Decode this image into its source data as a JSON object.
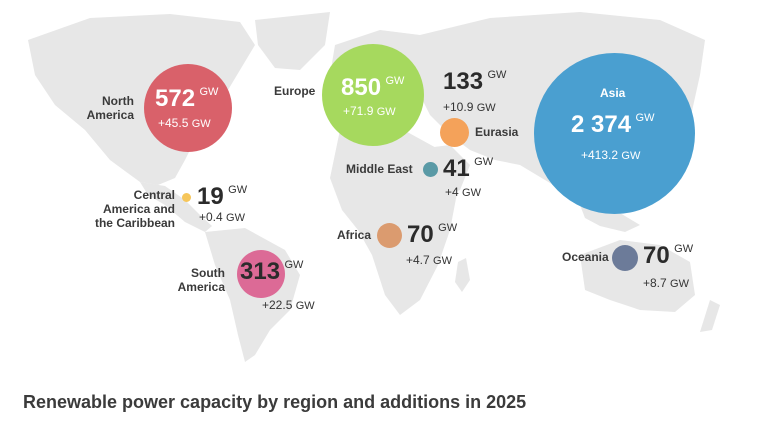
{
  "title": "Renewable power capacity by region and additions in 2025",
  "regions": {
    "north_america": {
      "name_l1": "North",
      "name_l2": "America",
      "value": "572",
      "unit": "GW",
      "addition": "+45.5",
      "add_unit": "GW",
      "color": "#d9616a"
    },
    "europe": {
      "name": "Europe",
      "value": "850",
      "unit": "GW",
      "addition": "+71.9",
      "add_unit": "GW",
      "color": "#a6d95e"
    },
    "eurasia": {
      "name": "Eurasia",
      "value": "133",
      "unit": "GW",
      "addition": "+10.9",
      "add_unit": "GW",
      "color": "#f4a25a"
    },
    "middle_east": {
      "name": "Middle East",
      "value": "41",
      "unit": "GW",
      "addition": "+4",
      "add_unit": "GW",
      "color": "#5a9aa6"
    },
    "asia": {
      "name": "Asia",
      "value": "2 374",
      "unit": "GW",
      "addition": "+413.2",
      "add_unit": "GW",
      "color": "#4a9fd0"
    },
    "central_america": {
      "name_l1": "Central",
      "name_l2": "America and",
      "name_l3": "the Caribbean",
      "value": "19",
      "unit": "GW",
      "addition": "+0.4",
      "add_unit": "GW",
      "color": "#f6c65a"
    },
    "africa": {
      "name": "Africa",
      "value": "70",
      "unit": "GW",
      "addition": "+4.7",
      "add_unit": "GW",
      "color": "#db9b6f"
    },
    "south_america": {
      "name_l1": "South",
      "name_l2": "America",
      "value": "313",
      "unit": "GW",
      "addition": "+22.5",
      "add_unit": "GW",
      "color": "#dc6a96"
    },
    "oceania": {
      "name": "Oceania",
      "value": "70",
      "unit": "GW",
      "addition": "+8.7",
      "add_unit": "GW",
      "color": "#6c7b99"
    }
  }
}
